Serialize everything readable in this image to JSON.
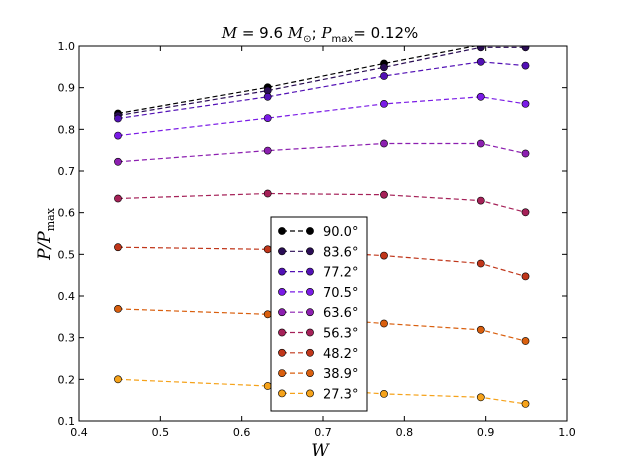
{
  "chart_data": {
    "type": "line",
    "title": "M = 9.6 M⊙; Pmax = 0.12%",
    "title_parts": {
      "mass_symbol": "M",
      "mass_value": " = 9.6 ",
      "solar_symbol": "M",
      "solar_subscript": "⊙",
      "separator": ";  ",
      "p_symbol": "P",
      "p_subscript": "max",
      "p_value": "= 0.12%"
    },
    "xlabel": "W",
    "ylabel": "P/P",
    "ylabel_subscript": "max",
    "xlim": [
      0.4,
      1.0
    ],
    "ylim": [
      0.1,
      1.0
    ],
    "xticks": [
      "0.4",
      "0.5",
      "0.6",
      "0.7",
      "0.8",
      "0.9",
      "1.0"
    ],
    "yticks": [
      "0.1",
      "0.2",
      "0.3",
      "0.4",
      "0.5",
      "0.6",
      "0.7",
      "0.8",
      "0.9",
      "1.0"
    ],
    "x": [
      0.448,
      0.632,
      0.775,
      0.894,
      0.949
    ],
    "series": [
      {
        "name": "90.0°",
        "color": "#000000",
        "values": [
          0.838,
          0.901,
          0.958,
          1.003,
          1.003
        ]
      },
      {
        "name": "83.6°",
        "color": "#2a0d55",
        "values": [
          0.833,
          0.893,
          0.949,
          0.997,
          0.997
        ]
      },
      {
        "name": "77.2°",
        "color": "#5211b5",
        "values": [
          0.826,
          0.878,
          0.928,
          0.962,
          0.953
        ]
      },
      {
        "name": "70.5°",
        "color": "#7a1be6",
        "values": [
          0.785,
          0.827,
          0.861,
          0.878,
          0.861
        ]
      },
      {
        "name": "63.6°",
        "color": "#8c1fb0",
        "values": [
          0.722,
          0.749,
          0.766,
          0.766,
          0.742
        ]
      },
      {
        "name": "56.3°",
        "color": "#a52158",
        "values": [
          0.634,
          0.646,
          0.643,
          0.629,
          0.601
        ]
      },
      {
        "name": "48.2°",
        "color": "#c0361a",
        "values": [
          0.517,
          0.512,
          0.497,
          0.478,
          0.447
        ]
      },
      {
        "name": "38.9°",
        "color": "#d95f0e",
        "values": [
          0.369,
          0.356,
          0.334,
          0.319,
          0.292
        ]
      },
      {
        "name": "27.3°",
        "color": "#f5a21a",
        "values": [
          0.2,
          0.184,
          0.165,
          0.157,
          0.141
        ]
      }
    ],
    "legend_position": "center-bottom",
    "grid": false
  }
}
